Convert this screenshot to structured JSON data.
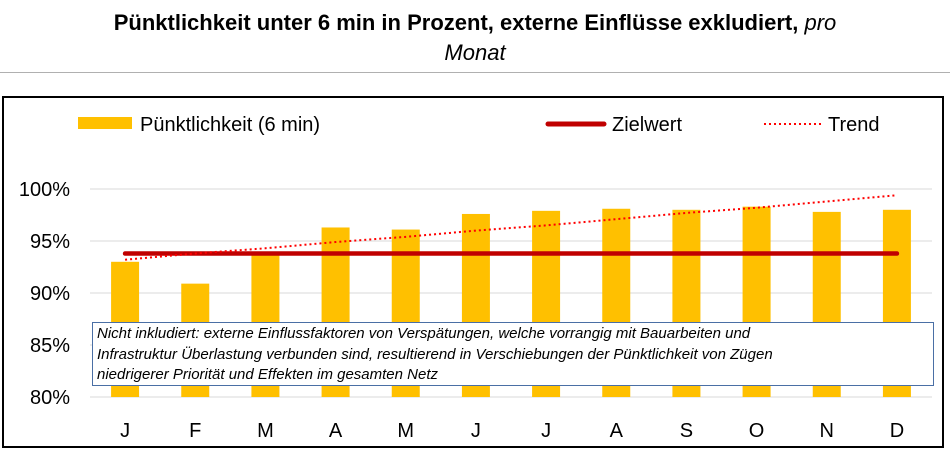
{
  "title": {
    "main": "Pünktlichkeit unter 6 min in Prozent, externe Einflüsse exkludiert,",
    "italic_a": "pro",
    "italic_b": "Monat"
  },
  "note": {
    "lines": [
      "Nicht inkludiert: externe Einflussfaktoren von Verspätungen, welche vorrangig mit Bauarbeiten und",
      "Infrastruktur Überlastung verbunden sind, resultierend in Verschiebungen der Pünktlichkeit von Zügen",
      "niedrigerer Priorität und Effekten im gesamten Netz"
    ]
  },
  "chart_data": {
    "type": "bar",
    "title": "Pünktlichkeit unter 6 min in Prozent, externe Einflüsse exkludiert, pro Monat",
    "categories": [
      "J",
      "F",
      "M",
      "A",
      "M",
      "J",
      "J",
      "A",
      "S",
      "O",
      "N",
      "D"
    ],
    "series": [
      {
        "name": "Pünktlichkeit (6 min)",
        "type": "bar",
        "color": "#FFC000",
        "values": [
          93.0,
          90.9,
          93.9,
          96.3,
          96.1,
          97.6,
          97.9,
          98.1,
          98.0,
          98.3,
          97.8,
          98.0
        ]
      },
      {
        "name": "Zielwert",
        "type": "line",
        "color": "#C00000",
        "values": [
          93.8,
          93.8,
          93.8,
          93.8,
          93.8,
          93.8,
          93.8,
          93.8,
          93.8,
          93.8,
          93.8,
          93.8
        ]
      },
      {
        "name": "Trend",
        "type": "line",
        "style": "dotted",
        "color": "#FF0000",
        "values": [
          93.2,
          93.8,
          94.3,
          94.9,
          95.4,
          96.0,
          96.5,
          97.1,
          97.7,
          98.2,
          98.8,
          99.4
        ]
      }
    ],
    "yticks": [
      "80%",
      "85%",
      "90%",
      "95%",
      "100%"
    ],
    "ytick_values": [
      80,
      85,
      90,
      95,
      100
    ],
    "ylim": [
      80,
      100
    ],
    "xlabel": "",
    "ylabel": "",
    "grid": true,
    "legend_position": "top"
  }
}
